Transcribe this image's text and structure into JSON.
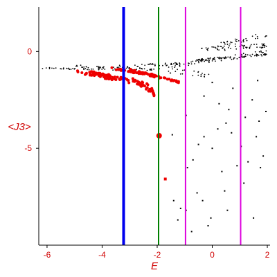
{
  "chart_data": {
    "type": "scatter",
    "xlabel": "E",
    "ylabel": "<J3>",
    "xlim": [
      -6.3,
      2.1
    ],
    "ylim": [
      -10.0,
      2.3
    ],
    "x_ticks": [
      -6,
      -4,
      -2,
      0,
      2
    ],
    "y_ticks": [
      0,
      -5
    ],
    "grid": false,
    "colors": {
      "axis": "#000000",
      "tick_labels": "#dd0000",
      "black_points": "#000000",
      "red_points": "#ee0000"
    },
    "vertical_lines": [
      {
        "x": -3.22,
        "color": "#0000ee",
        "style": "thick"
      },
      {
        "x": -1.95,
        "color": "#008000",
        "style": "medium"
      },
      {
        "x": -0.97,
        "color": "#dd00dd",
        "style": "medium"
      },
      {
        "x": 1.03,
        "color": "#dd00dd",
        "style": "medium"
      }
    ],
    "series": [
      {
        "color": "#000000",
        "bands": [
          {
            "x0": -6.2,
            "x1": -3.2,
            "y0": -0.85,
            "y1": -0.95,
            "spread": 0.04,
            "n": 45
          },
          {
            "x0": -5.0,
            "x1": -1.9,
            "y0": -0.75,
            "y1": -0.95,
            "spread": 0.06,
            "n": 45
          },
          {
            "x0": -3.5,
            "x1": -1.0,
            "y0": -0.8,
            "y1": -0.6,
            "spread": 0.08,
            "n": 35
          },
          {
            "x0": -1.6,
            "x1": 2.0,
            "y0": -0.75,
            "y1": -0.05,
            "spread": 0.12,
            "n": 70
          },
          {
            "x0": -0.6,
            "x1": 2.0,
            "y0": -0.45,
            "y1": -0.15,
            "spread": 0.06,
            "n": 60
          },
          {
            "x0": -0.4,
            "x1": 2.0,
            "y0": 0.1,
            "y1": 0.3,
            "spread": 0.12,
            "n": 60
          },
          {
            "x0": 0.2,
            "x1": 2.0,
            "y0": 0.3,
            "y1": 0.9,
            "spread": 0.15,
            "n": 35
          },
          {
            "x0": -1.6,
            "x1": 0.0,
            "y0": -1.0,
            "y1": -1.2,
            "spread": 0.15,
            "n": 22
          }
        ],
        "scatter_points": [
          [
            -1.45,
            -4.3
          ],
          [
            -1.4,
            -7.7
          ],
          [
            -1.25,
            -8.7
          ],
          [
            -1.15,
            -8.1
          ],
          [
            -0.95,
            -8.2
          ],
          [
            -0.9,
            -6.0
          ],
          [
            -0.75,
            -9.3
          ],
          [
            -0.7,
            -5.6
          ],
          [
            -0.55,
            -7.3
          ],
          [
            -0.5,
            -4.8
          ],
          [
            -0.35,
            -7.7
          ],
          [
            -0.3,
            -4.4
          ],
          [
            -0.15,
            -9.0
          ],
          [
            -0.05,
            -8.6
          ],
          [
            0.0,
            -5.0
          ],
          [
            0.2,
            -4.0
          ],
          [
            0.25,
            -2.7
          ],
          [
            0.35,
            -6.2
          ],
          [
            0.45,
            -7.2
          ],
          [
            0.55,
            -8.2
          ],
          [
            0.6,
            -3.0
          ],
          [
            0.7,
            -4.2
          ],
          [
            0.75,
            -1.9
          ],
          [
            0.9,
            -5.9
          ],
          [
            1.05,
            -4.9
          ],
          [
            1.15,
            -6.8
          ],
          [
            1.3,
            -5.7
          ],
          [
            1.45,
            -2.5
          ],
          [
            1.5,
            -8.6
          ],
          [
            1.6,
            -4.4
          ],
          [
            1.65,
            -1.5
          ],
          [
            1.75,
            -6.0
          ],
          [
            1.85,
            -5.4
          ],
          [
            1.95,
            -3.1
          ],
          [
            0.5,
            -3.7
          ],
          [
            1.2,
            -3.4
          ],
          [
            1.7,
            -3.6
          ],
          [
            -0.95,
            -3.3
          ],
          [
            0.0,
            -1.6
          ],
          [
            -0.3,
            -2.3
          ]
        ]
      },
      {
        "color": "#ee0000",
        "bands": [
          {
            "x0": -4.9,
            "x1": -2.3,
            "y0": -1.05,
            "y1": -1.7,
            "spread": 0.1,
            "n": 70
          },
          {
            "x0": -4.5,
            "x1": -3.3,
            "y0": -1.05,
            "y1": -1.35,
            "spread": 0.05,
            "n": 25
          },
          {
            "x0": -3.7,
            "x1": -2.0,
            "y0": -0.85,
            "y1": -1.25,
            "spread": 0.05,
            "n": 40
          },
          {
            "x0": -3.0,
            "x1": -1.2,
            "y0": -0.95,
            "y1": -1.6,
            "spread": 0.05,
            "n": 40
          },
          {
            "x0": -2.9,
            "x1": -2.1,
            "y0": -1.45,
            "y1": -2.15,
            "spread": 0.08,
            "n": 30
          },
          {
            "x0": -2.2,
            "x1": -2.1,
            "y0": -1.9,
            "y1": -2.35,
            "spread": 0.04,
            "n": 15
          }
        ],
        "scatter_points": [
          [
            -1.73,
            -6.55
          ]
        ],
        "highlight": {
          "x": -1.93,
          "y": -4.35
        }
      }
    ]
  }
}
